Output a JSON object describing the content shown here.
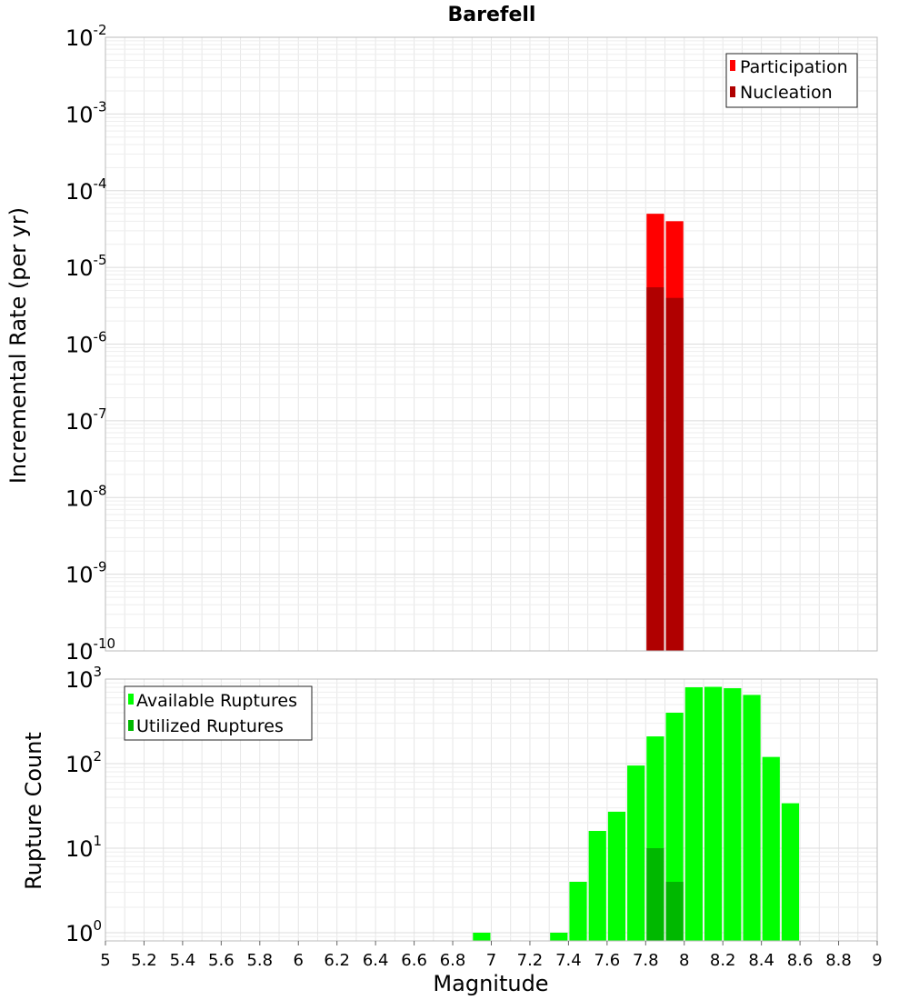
{
  "title": "Barefell",
  "colors": {
    "participation": "#ff0000",
    "nucleation": "#b00000",
    "available": "#00ff00",
    "utilized": "#00b800",
    "grid": "#e6e6e6",
    "frame": "#bbbbbb"
  },
  "chart_data": [
    {
      "type": "bar",
      "ylabel": "Incremental Rate (per yr)",
      "yscale": "log",
      "ylim": [
        1e-10,
        0.01
      ],
      "xlim": [
        5,
        9
      ],
      "ytick_exponents": [
        -2,
        -3,
        -4,
        -5,
        -6,
        -7,
        -8,
        -9,
        -10
      ],
      "legend": {
        "placement": "top-right",
        "entries": [
          "Participation",
          "Nucleation"
        ]
      },
      "bin_width": 0.1,
      "series": [
        {
          "name": "Participation",
          "x": [
            7.85,
            7.95
          ],
          "values": [
            5e-05,
            4e-05
          ]
        },
        {
          "name": "Nucleation",
          "x": [
            7.85,
            7.95
          ],
          "values": [
            5.5e-06,
            4e-06
          ]
        }
      ]
    },
    {
      "type": "bar",
      "ylabel": "Rupture Count",
      "xlabel": "Magnitude",
      "yscale": "log",
      "ylim": [
        0.8,
        1000
      ],
      "xlim": [
        5,
        9
      ],
      "ytick_exponents": [
        3,
        2,
        1,
        0
      ],
      "xticks": [
        "5",
        "5.2",
        "5.4",
        "5.6",
        "5.8",
        "6",
        "6.2",
        "6.4",
        "6.6",
        "6.8",
        "7",
        "7.2",
        "7.4",
        "7.6",
        "7.8",
        "8",
        "8.2",
        "8.4",
        "8.6",
        "8.8",
        "9"
      ],
      "legend": {
        "placement": "top-left",
        "entries": [
          "Available Ruptures",
          "Utilized Ruptures"
        ]
      },
      "bin_width": 0.1,
      "series": [
        {
          "name": "Available Ruptures",
          "x": [
            6.95,
            7.35,
            7.45,
            7.55,
            7.65,
            7.75,
            7.85,
            7.95,
            8.05,
            8.15,
            8.25,
            8.35,
            8.45,
            8.55
          ],
          "values": [
            1,
            1,
            4,
            16,
            27,
            95,
            210,
            400,
            800,
            810,
            780,
            650,
            120,
            34
          ]
        },
        {
          "name": "Utilized Ruptures",
          "x": [
            7.85,
            7.95
          ],
          "values": [
            10,
            4
          ]
        }
      ]
    }
  ]
}
